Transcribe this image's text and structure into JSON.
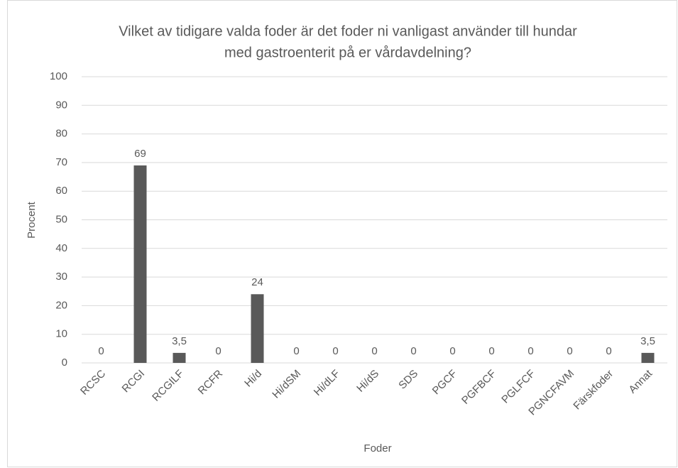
{
  "chart_data": {
    "type": "bar",
    "title": [
      "Vilket av tidigare valda foder är det foder ni vanligast använder till hundar",
      "med gastroenterit på er vårdavdelning?"
    ],
    "x_label": "Foder",
    "y_label": "Procent",
    "categories": [
      "RCSC",
      "RCGI",
      "RCGILF",
      "RCFR",
      "Hi/d",
      "Hi/dSM",
      "Hi/dLF",
      "Hi/dS",
      "SDS",
      "PGCF",
      "PGFBCF",
      "PGLFCF",
      "PGNCFAVM",
      "Färskfoder",
      "Annat"
    ],
    "values": [
      0,
      69,
      3.5,
      0,
      24,
      0,
      0,
      0,
      0,
      0,
      0,
      0,
      0,
      0,
      3.5
    ],
    "value_labels": [
      "0",
      "69",
      "3,5",
      "0",
      "24",
      "0",
      "0",
      "0",
      "0",
      "0",
      "0",
      "0",
      "0",
      "0",
      "3,5"
    ],
    "color": "#595959",
    "ylim": [
      0,
      100
    ],
    "yticks": [
      0,
      10,
      20,
      30,
      40,
      50,
      60,
      70,
      80,
      90,
      100
    ],
    "grid": true
  }
}
